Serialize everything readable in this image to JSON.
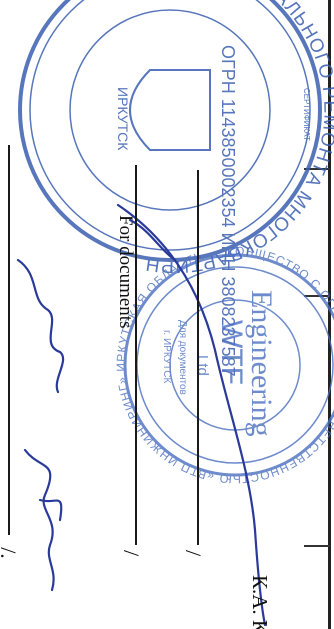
{
  "seal_fund": {
    "ring_text": "ФОНД КАПИТАЛЬНОГО РЕМОНТА МНОГОКВАРТИРНЫХ ДОМОВ ИРКУТСКОЙ ОБЛАСТИ",
    "ogrn": "ОГРН 1143850002354 ИНН 3808237587",
    "top_band": "СЕРТИФИКАТ",
    "city": "ИРКУТСК",
    "stars": "* *",
    "color": "#3a5fb0"
  },
  "seal_company": {
    "ring_text": "ОБЩЕСТВО С ОГРАНИЧЕННОЙ ОТВЕТСТВЕННОСТЬЮ «ВТП ИНЖИНИРИНГ» ИРКУТСКАЯ ОБЛАСТЬ",
    "name_top": "WTF",
    "name_mid": "Engineering",
    "name_bottom": "Ltd",
    "for_docs": "Для документов",
    "city": "г. ИРКУТСК",
    "color": "#4a6fc0"
  },
  "overlay_text": {
    "for_documents": "For documents"
  },
  "signature_marks": {
    "slash_1": "/",
    "slash_2": "/",
    "slash_3": "/."
  },
  "signer": {
    "name": "К.А. К"
  }
}
